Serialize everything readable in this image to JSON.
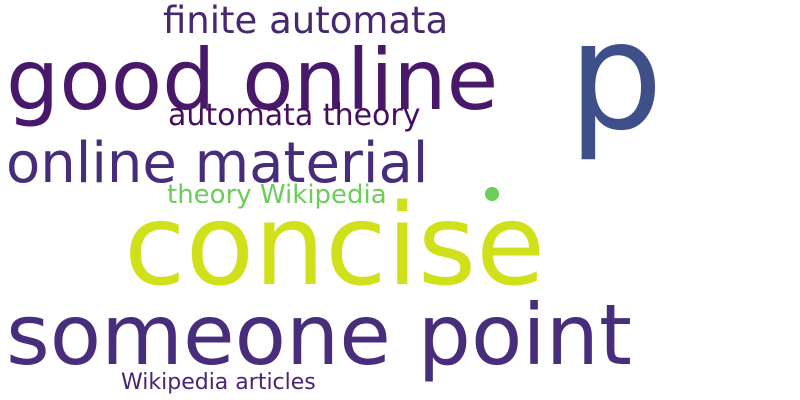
{
  "words": {
    "p": {
      "text": "p",
      "color": "#3f4f8a"
    },
    "finite_automata": {
      "text": "finite automata",
      "color": "#46286e"
    },
    "good_online": {
      "text": "good online",
      "color": "#48186a"
    },
    "automata_theory": {
      "text": "automata theory",
      "color": "#440f5c"
    },
    "online_material": {
      "text": "online material",
      "color": "#472c7a"
    },
    "theory_wikipedia": {
      "text": "theory Wikipedia",
      "color": "#6ccd5a"
    },
    "concise": {
      "text": "concise",
      "color": "#d0e11c"
    },
    "someone_point": {
      "text": "someone point",
      "color": "#472d7b"
    },
    "wikipedia_articles": {
      "text": "Wikipedia articles",
      "color": "#482475"
    }
  },
  "dot_color": "#6ccd5a"
}
